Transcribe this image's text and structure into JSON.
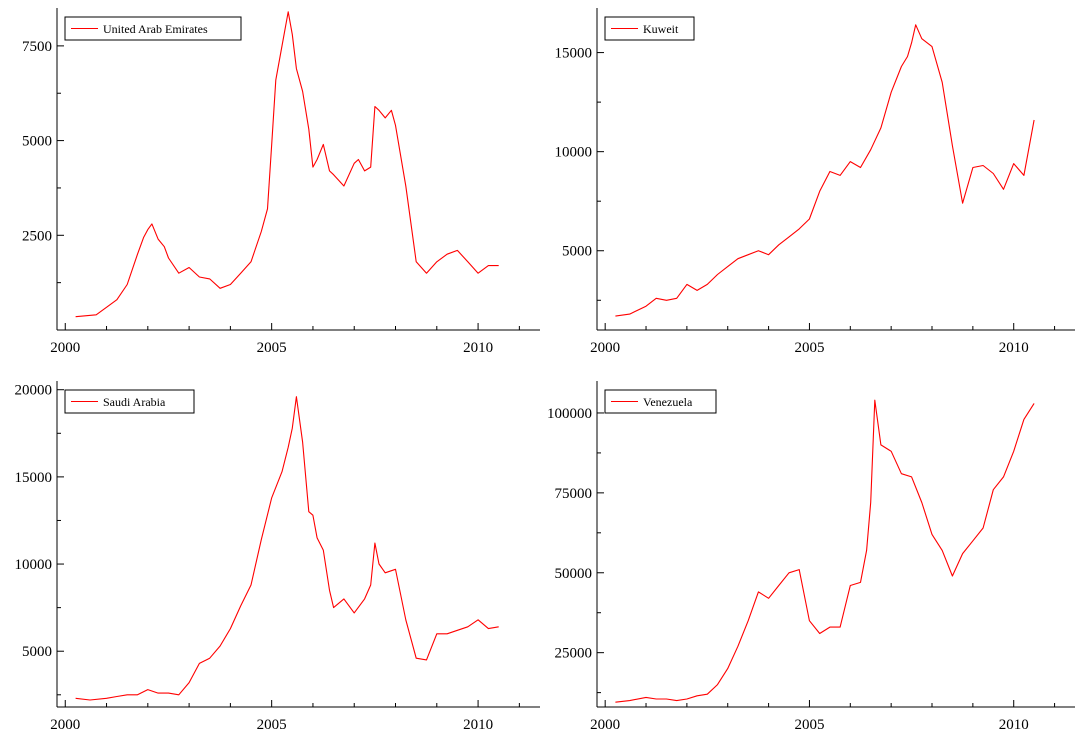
{
  "chart_data": [
    {
      "type": "line",
      "series": [
        {
          "name": "United Arab Emirates",
          "color": "#ff0000",
          "x": [
            2000.25,
            2000.75,
            2001.0,
            2001.25,
            2001.5,
            2001.75,
            2001.9,
            2002.0,
            2002.1,
            2002.25,
            2002.4,
            2002.5,
            2002.75,
            2003.0,
            2003.25,
            2003.5,
            2003.75,
            2004.0,
            2004.25,
            2004.5,
            2004.75,
            2004.9,
            2005.0,
            2005.1,
            2005.25,
            2005.4,
            2005.5,
            2005.6,
            2005.75,
            2005.9,
            2006.0,
            2006.1,
            2006.25,
            2006.4,
            2006.5,
            2006.75,
            2007.0,
            2007.1,
            2007.25,
            2007.4,
            2007.5,
            2007.6,
            2007.75,
            2007.9,
            2008.0,
            2008.25,
            2008.5,
            2008.75,
            2009.0,
            2009.25,
            2009.5,
            2009.75,
            2010.0,
            2010.25,
            2010.5
          ],
          "y": [
            350,
            400,
            600,
            800,
            1200,
            2000,
            2450,
            2650,
            2800,
            2400,
            2200,
            1900,
            1500,
            1650,
            1400,
            1350,
            1100,
            1200,
            1500,
            1800,
            2600,
            3200,
            4900,
            6600,
            7500,
            8400,
            7800,
            6900,
            6300,
            5300,
            4300,
            4500,
            4900,
            4200,
            4100,
            3800,
            4400,
            4500,
            4200,
            4300,
            5900,
            5800,
            5600,
            5800,
            5400,
            3800,
            1800,
            1500,
            1800,
            2000,
            2100,
            1800,
            1500,
            1700,
            1700
          ]
        }
      ],
      "xticks": [
        2000,
        2005,
        2010
      ],
      "yticks": [
        2500,
        5000,
        7500
      ],
      "xlim": [
        1999.8,
        2011.5
      ],
      "ylim": [
        0,
        8500
      ]
    },
    {
      "type": "line",
      "series": [
        {
          "name": "Kuweit",
          "color": "#ff0000",
          "x": [
            2000.25,
            2000.6,
            2001.0,
            2001.25,
            2001.5,
            2001.75,
            2002.0,
            2002.25,
            2002.5,
            2002.75,
            2003.0,
            2003.25,
            2003.5,
            2003.75,
            2004.0,
            2004.25,
            2004.5,
            2004.75,
            2005.0,
            2005.25,
            2005.5,
            2005.75,
            2006.0,
            2006.25,
            2006.5,
            2006.75,
            2007.0,
            2007.25,
            2007.4,
            2007.5,
            2007.6,
            2007.75,
            2008.0,
            2008.25,
            2008.5,
            2008.75,
            2009.0,
            2009.25,
            2009.5,
            2009.75,
            2010.0,
            2010.25,
            2010.5
          ],
          "y": [
            1700,
            1800,
            2200,
            2600,
            2500,
            2600,
            3300,
            3000,
            3300,
            3800,
            4200,
            4600,
            4800,
            5000,
            4800,
            5300,
            5700,
            6100,
            6600,
            8000,
            9000,
            8800,
            9500,
            9200,
            10100,
            11200,
            13000,
            14300,
            14800,
            15500,
            16400,
            15700,
            15300,
            13500,
            10300,
            7400,
            9200,
            9300,
            8900,
            8100,
            9400,
            8800,
            11600
          ]
        }
      ],
      "xticks": [
        2000,
        2005,
        2010
      ],
      "yticks": [
        5000,
        10000,
        15000
      ],
      "xlim": [
        1999.8,
        2011.5
      ],
      "ylim": [
        1000,
        17250
      ]
    },
    {
      "type": "line",
      "series": [
        {
          "name": "Saudi Arabia",
          "color": "#ff0000",
          "x": [
            2000.25,
            2000.6,
            2001.0,
            2001.25,
            2001.5,
            2001.75,
            2002.0,
            2002.25,
            2002.5,
            2002.75,
            2003.0,
            2003.25,
            2003.5,
            2003.75,
            2004.0,
            2004.25,
            2004.5,
            2004.75,
            2005.0,
            2005.25,
            2005.4,
            2005.5,
            2005.6,
            2005.75,
            2005.9,
            2006.0,
            2006.1,
            2006.25,
            2006.4,
            2006.5,
            2006.75,
            2007.0,
            2007.25,
            2007.4,
            2007.5,
            2007.6,
            2007.75,
            2008.0,
            2008.25,
            2008.5,
            2008.75,
            2009.0,
            2009.25,
            2009.5,
            2009.75,
            2010.0,
            2010.25,
            2010.5
          ],
          "y": [
            2300,
            2200,
            2300,
            2400,
            2500,
            2500,
            2800,
            2600,
            2600,
            2500,
            3200,
            4300,
            4600,
            5300,
            6300,
            7600,
            8800,
            11400,
            13800,
            15300,
            16700,
            17800,
            19600,
            17000,
            13000,
            12800,
            11500,
            10800,
            8500,
            7500,
            8000,
            7200,
            8000,
            8800,
            11200,
            10000,
            9500,
            9700,
            6800,
            4600,
            4500,
            6000,
            6000,
            6200,
            6400,
            6800,
            6300,
            6400
          ]
        }
      ],
      "xticks": [
        2000,
        2005,
        2010
      ],
      "yticks": [
        5000,
        10000,
        15000,
        20000
      ],
      "xlim": [
        1999.8,
        2011.5
      ],
      "ylim": [
        1800,
        20500
      ]
    },
    {
      "type": "line",
      "series": [
        {
          "name": "Venezuela",
          "color": "#ff0000",
          "x": [
            2000.25,
            2000.6,
            2001.0,
            2001.25,
            2001.5,
            2001.75,
            2002.0,
            2002.25,
            2002.5,
            2002.75,
            2003.0,
            2003.25,
            2003.5,
            2003.75,
            2004.0,
            2004.25,
            2004.5,
            2004.75,
            2005.0,
            2005.25,
            2005.5,
            2005.75,
            2006.0,
            2006.25,
            2006.4,
            2006.5,
            2006.6,
            2006.75,
            2007.0,
            2007.25,
            2007.5,
            2007.75,
            2008.0,
            2008.25,
            2008.5,
            2008.75,
            2009.0,
            2009.25,
            2009.5,
            2009.75,
            2010.0,
            2010.25,
            2010.5
          ],
          "y": [
            9500,
            10000,
            11000,
            10500,
            10500,
            10000,
            10500,
            11500,
            12000,
            15000,
            20000,
            27000,
            35000,
            44000,
            42000,
            46000,
            50000,
            51000,
            35000,
            31000,
            33000,
            33000,
            46000,
            47000,
            57000,
            72000,
            104000,
            90000,
            88000,
            81000,
            80000,
            72000,
            62000,
            57000,
            49000,
            56000,
            60000,
            64000,
            76000,
            80000,
            88000,
            98000,
            103000
          ]
        }
      ],
      "xticks": [
        2000,
        2005,
        2010
      ],
      "yticks": [
        25000,
        50000,
        75000,
        100000
      ],
      "xlim": [
        1999.8,
        2011.5
      ],
      "ylim": [
        8000,
        110000
      ]
    }
  ]
}
